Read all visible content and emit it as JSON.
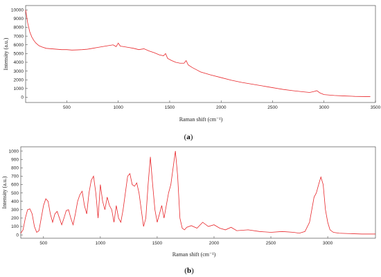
{
  "chart_data": [
    {
      "type": "line",
      "panel_label": "(a)",
      "panel_letter": "a",
      "xlabel": "Raman shift (cm⁻¹)",
      "ylabel": "Intensity (a.u.)",
      "xlim": [
        100,
        3500
      ],
      "ylim": [
        -600,
        10500
      ],
      "xticks": [
        500,
        1000,
        1500,
        2000,
        2500,
        3000,
        3500
      ],
      "yticks": [
        0,
        1000,
        2000,
        3000,
        4000,
        5000,
        6000,
        7000,
        8000,
        9000,
        10000
      ],
      "line_color": "#e8262a",
      "series": [
        {
          "x": [
            100,
            120,
            140,
            160,
            180,
            200,
            230,
            260,
            300,
            350,
            400,
            450,
            500,
            550,
            600,
            650,
            700,
            750,
            800,
            850,
            900,
            950,
            980,
            1000,
            1020,
            1050,
            1100,
            1150,
            1200,
            1250,
            1300,
            1350,
            1400,
            1440,
            1460,
            1480,
            1520,
            1560,
            1600,
            1640,
            1660,
            1680,
            1720,
            1760,
            1800,
            1900,
            2000,
            2100,
            2200,
            2300,
            2400,
            2500,
            2600,
            2700,
            2800,
            2860,
            2900,
            2930,
            2960,
            3000,
            3100,
            3200,
            3300,
            3400,
            3450
          ],
          "y": [
            10000,
            8500,
            7500,
            6900,
            6500,
            6200,
            5900,
            5750,
            5600,
            5550,
            5500,
            5450,
            5450,
            5400,
            5420,
            5450,
            5500,
            5600,
            5700,
            5800,
            5900,
            6000,
            5800,
            6200,
            5850,
            5800,
            5700,
            5600,
            5450,
            5550,
            5300,
            5100,
            4850,
            4750,
            5000,
            4450,
            4200,
            4000,
            3900,
            3900,
            4200,
            3700,
            3400,
            3150,
            2900,
            2550,
            2250,
            1950,
            1700,
            1500,
            1300,
            1100,
            900,
            750,
            620,
            550,
            650,
            750,
            500,
            300,
            200,
            150,
            100,
            80,
            70
          ]
        }
      ]
    },
    {
      "type": "line",
      "panel_label": "(b)",
      "panel_letter": "b",
      "xlabel": "Raman shift (cm⁻¹)",
      "ylabel": "Intensity (a.u.)",
      "xlim": [
        300,
        3420
      ],
      "ylim": [
        -40,
        1050
      ],
      "xticks": [
        500,
        1000,
        1500,
        2000,
        2500,
        3000
      ],
      "yticks": [
        0,
        100,
        200,
        300,
        400,
        500,
        600,
        700,
        800,
        900,
        1000
      ],
      "line_color": "#e8262a",
      "series": [
        {
          "x": [
            300,
            320,
            340,
            360,
            380,
            400,
            420,
            440,
            460,
            480,
            500,
            520,
            540,
            560,
            580,
            600,
            620,
            640,
            660,
            680,
            700,
            720,
            740,
            760,
            780,
            800,
            820,
            840,
            860,
            880,
            900,
            920,
            940,
            960,
            980,
            1000,
            1020,
            1040,
            1060,
            1080,
            1100,
            1120,
            1140,
            1160,
            1180,
            1200,
            1220,
            1240,
            1260,
            1280,
            1300,
            1320,
            1340,
            1360,
            1380,
            1400,
            1420,
            1440,
            1460,
            1480,
            1500,
            1520,
            1540,
            1560,
            1580,
            1600,
            1620,
            1640,
            1660,
            1680,
            1700,
            1720,
            1740,
            1760,
            1800,
            1850,
            1900,
            1950,
            2000,
            2050,
            2100,
            2150,
            2200,
            2300,
            2400,
            2500,
            2600,
            2700,
            2750,
            2800,
            2840,
            2860,
            2880,
            2900,
            2920,
            2940,
            2960,
            2980,
            3000,
            3020,
            3050,
            3100,
            3200,
            3300,
            3420
          ],
          "y": [
            20,
            60,
            200,
            300,
            310,
            250,
            100,
            30,
            50,
            200,
            350,
            430,
            400,
            250,
            150,
            250,
            280,
            200,
            120,
            200,
            290,
            300,
            200,
            120,
            250,
            400,
            480,
            520,
            350,
            250,
            500,
            650,
            700,
            500,
            200,
            600,
            400,
            300,
            450,
            350,
            300,
            150,
            350,
            200,
            150,
            300,
            500,
            700,
            730,
            600,
            580,
            620,
            500,
            300,
            100,
            200,
            600,
            930,
            600,
            300,
            150,
            250,
            350,
            200,
            350,
            500,
            600,
            800,
            1000,
            700,
            200,
            80,
            60,
            90,
            110,
            80,
            150,
            100,
            120,
            80,
            60,
            90,
            50,
            60,
            40,
            30,
            40,
            30,
            20,
            40,
            150,
            300,
            450,
            500,
            600,
            690,
            600,
            300,
            150,
            60,
            30,
            20,
            15,
            10,
            10
          ]
        }
      ]
    }
  ]
}
